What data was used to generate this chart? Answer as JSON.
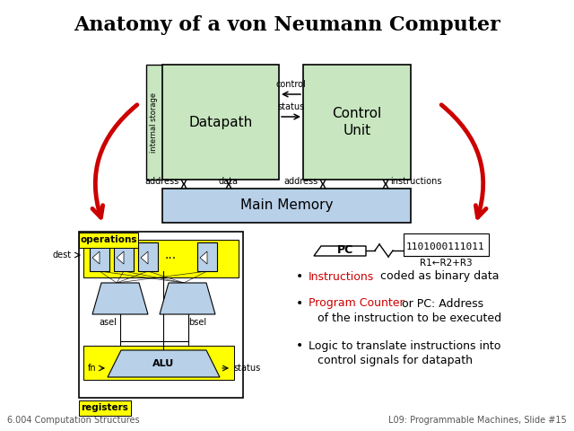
{
  "title": "Anatomy of a von Neumann Computer",
  "footer_left": "6.004 Computation Structures",
  "footer_right": "L09: Programmable Machines, Slide #15",
  "pc_label": "PC",
  "binary_text": "1101000111011",
  "r1_text": "R1←R2+R3",
  "dest_label": "dest",
  "asel_label": "asel",
  "bsel_label": "bsel",
  "fn_label": "fn",
  "status_label": "status",
  "alu_label": "ALU",
  "dots_label": "...",
  "control_label": "control",
  "status_ctrl_label": "status",
  "address_left": "address",
  "data_label": "data",
  "address_right": "address",
  "instructions_label": "instructions",
  "internal_storage_text": "internal storage",
  "datapath_label": "Datapath",
  "control_unit_label": "Control\nUnit",
  "main_memory_label": "Main Memory",
  "registers_label": "registers",
  "operations_label": "operations",
  "bullet1_red": "Instructions",
  "bullet1_black": " coded as binary data",
  "bullet2_red": "Program Counter",
  "bullet2_black": " or PC: Address",
  "bullet2_black2": "of the instruction to be executed",
  "bullet3_line1": "Logic to translate instructions into",
  "bullet3_line2": "control signals for datapath",
  "yellow_color": "#ffff00",
  "green_box_color": "#c8e6c0",
  "blue_box_color": "#b8d0e8",
  "red_arrow_color": "#cc0000",
  "red_text_color": "#cc0000"
}
